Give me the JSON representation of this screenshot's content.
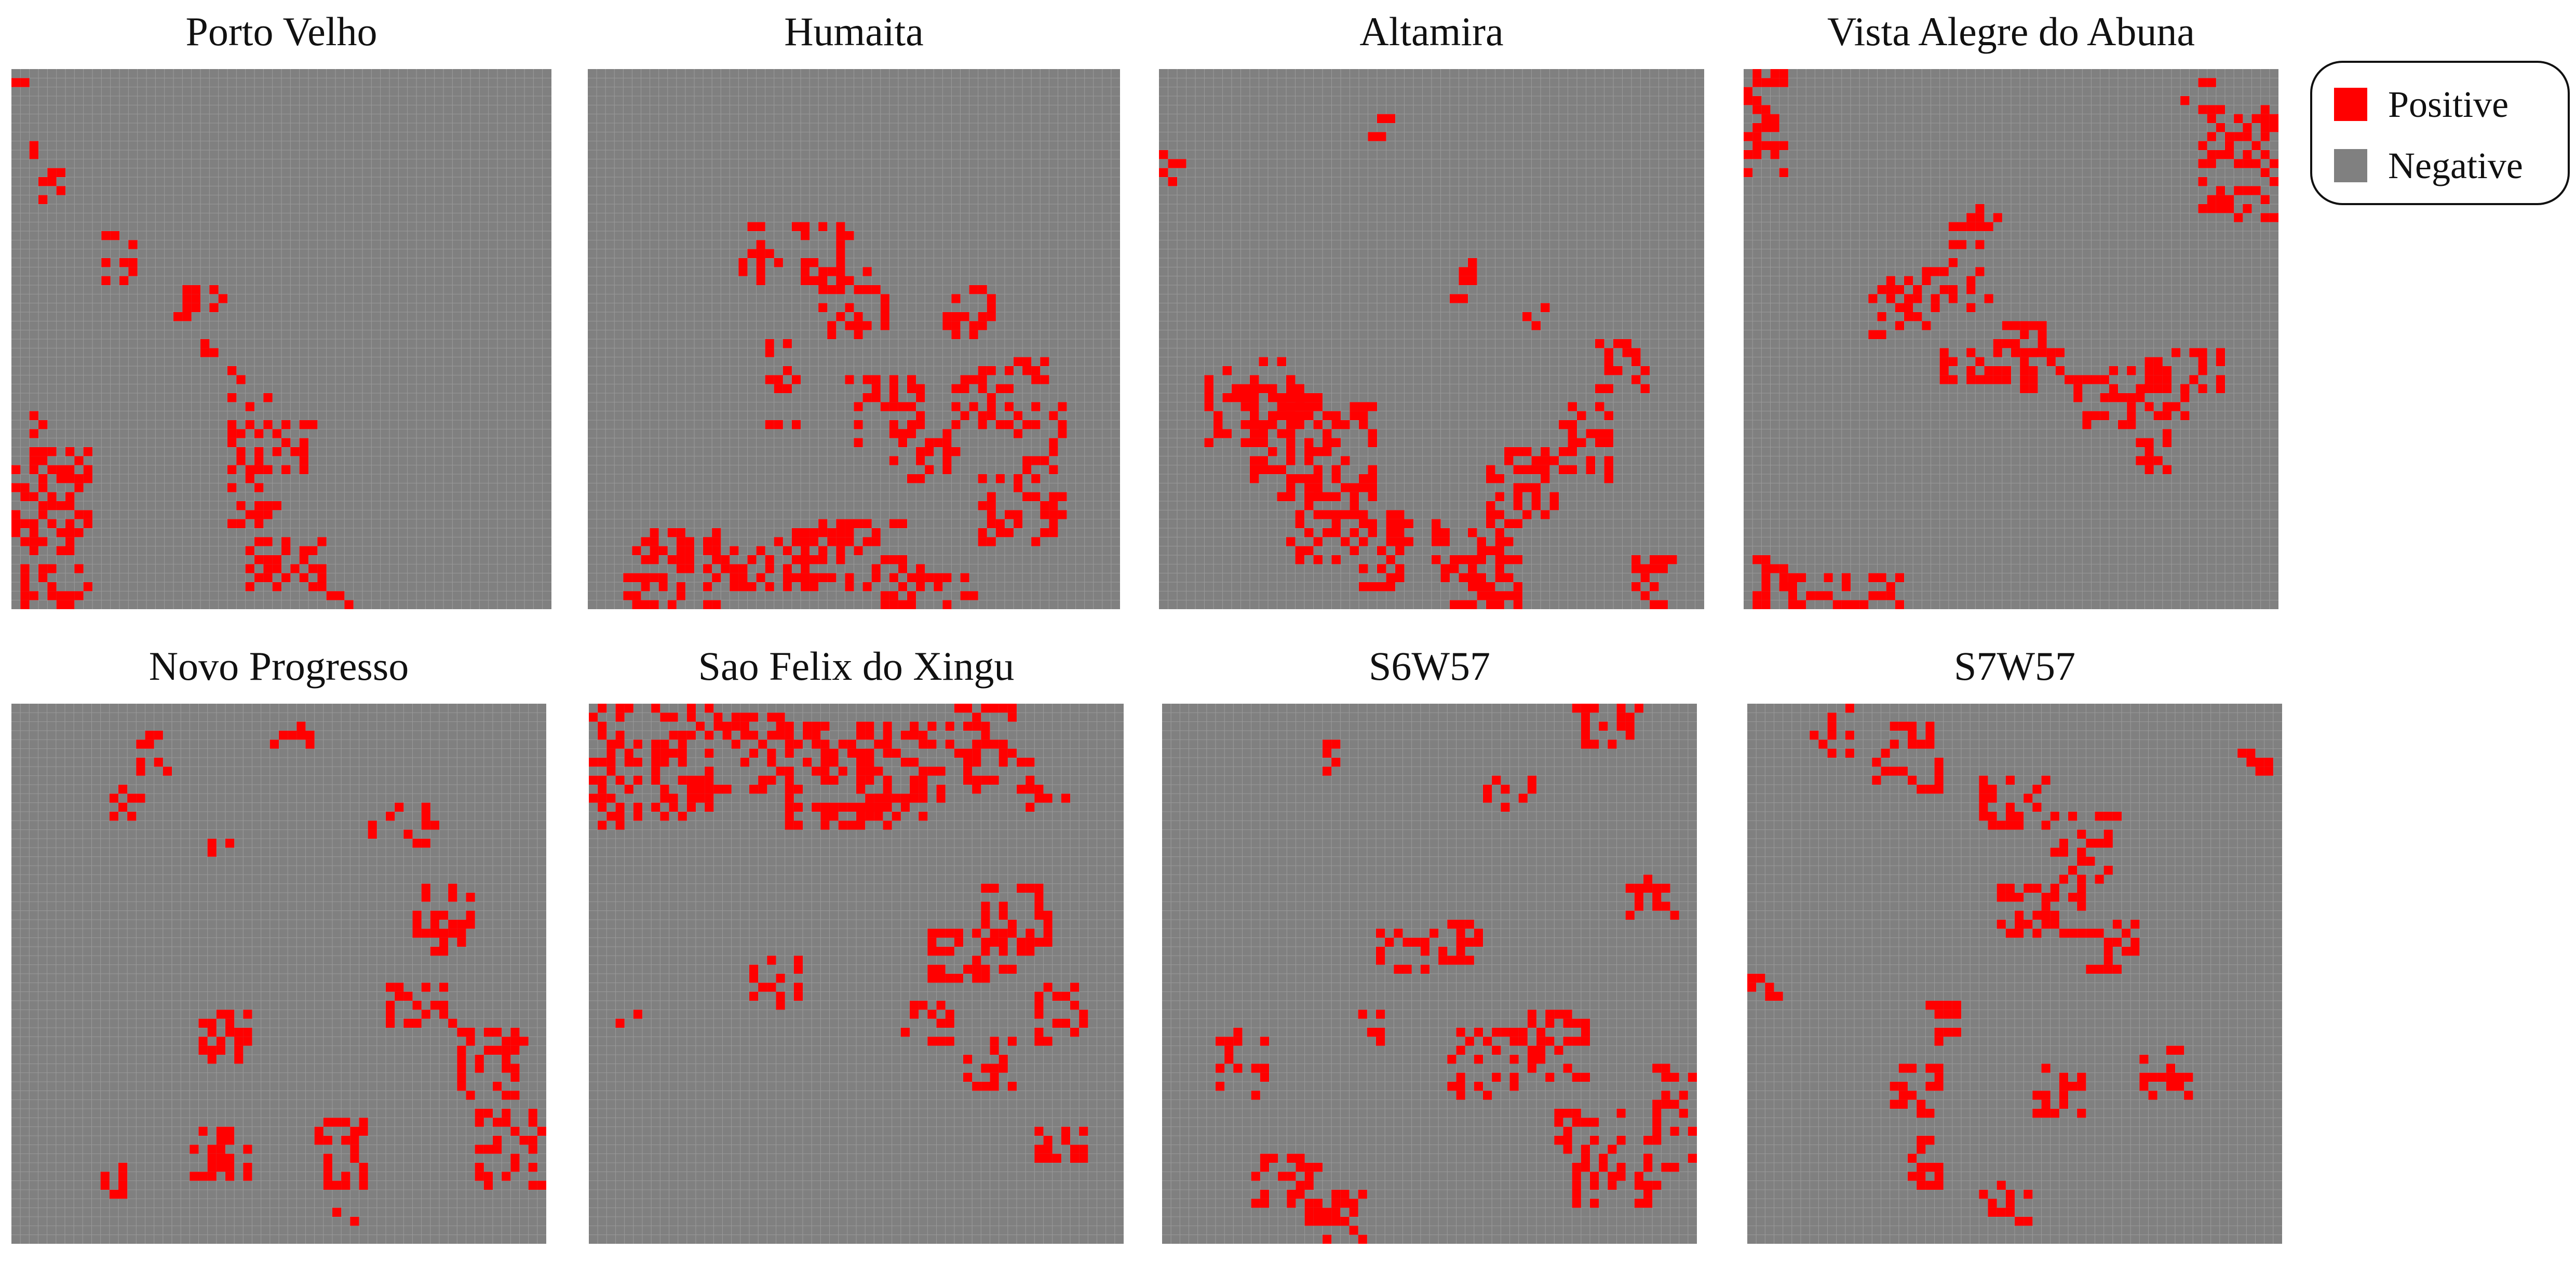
{
  "chart_data": {
    "type": "heatmap",
    "grid_size": 60,
    "legend": {
      "placement": "top-right",
      "items": [
        {
          "label": "Positive",
          "color": "#ff0000"
        },
        {
          "label": "Negative",
          "color": "#808080"
        }
      ]
    },
    "panels": [
      {
        "title": "Porto Velho",
        "positive_regions": [
          [
            1,
            3,
            8,
            10
          ],
          [
            3,
            6,
            11,
            15
          ],
          [
            2,
            4,
            14,
            16
          ],
          [
            10,
            14,
            18,
            24
          ],
          [
            18,
            20,
            27,
            30
          ],
          [
            18,
            24,
            24,
            27
          ],
          [
            21,
            23,
            29,
            33
          ],
          [
            24,
            27,
            33,
            38
          ],
          [
            24,
            34,
            39,
            45
          ],
          [
            24,
            30,
            45,
            53
          ],
          [
            26,
            35,
            52,
            58
          ],
          [
            0,
            9,
            42,
            54
          ],
          [
            1,
            10,
            55,
            60
          ],
          [
            2,
            5,
            38,
            43
          ],
          [
            0,
            2,
            0,
            2
          ],
          [
            28,
            30,
            35,
            37
          ],
          [
            35,
            38,
            58,
            60
          ]
        ]
      },
      {
        "title": "Humaita",
        "positive_regions": [
          [
            17,
            30,
            17,
            24
          ],
          [
            26,
            34,
            22,
            30
          ],
          [
            20,
            24,
            30,
            40
          ],
          [
            29,
            38,
            34,
            42
          ],
          [
            34,
            42,
            39,
            46
          ],
          [
            41,
            48,
            33,
            40
          ],
          [
            47,
            54,
            37,
            45
          ],
          [
            44,
            54,
            45,
            53
          ],
          [
            4,
            15,
            51,
            60
          ],
          [
            13,
            27,
            52,
            58
          ],
          [
            23,
            37,
            50,
            58
          ],
          [
            33,
            44,
            55,
            60
          ],
          [
            40,
            46,
            24,
            30
          ],
          [
            48,
            52,
            32,
            36
          ]
        ]
      },
      {
        "title": "Altamira",
        "positive_regions": [
          [
            31,
            34,
            24,
            26
          ],
          [
            33,
            35,
            18,
            24
          ],
          [
            40,
            43,
            26,
            29
          ],
          [
            5,
            16,
            32,
            42
          ],
          [
            10,
            24,
            36,
            48
          ],
          [
            14,
            22,
            46,
            55
          ],
          [
            20,
            28,
            48,
            58
          ],
          [
            30,
            40,
            50,
            60
          ],
          [
            36,
            44,
            42,
            50
          ],
          [
            44,
            50,
            37,
            46
          ],
          [
            48,
            54,
            30,
            36
          ],
          [
            52,
            58,
            54,
            60
          ],
          [
            0,
            3,
            9,
            13
          ],
          [
            22,
            26,
            5,
            9
          ]
        ]
      },
      {
        "title": "Vista Alegre do Abuna",
        "positive_regions": [
          [
            23,
            29,
            15,
            20
          ],
          [
            20,
            28,
            21,
            27
          ],
          [
            14,
            22,
            23,
            30
          ],
          [
            22,
            36,
            31,
            35
          ],
          [
            36,
            50,
            33,
            40
          ],
          [
            44,
            54,
            31,
            36
          ],
          [
            0,
            5,
            0,
            12
          ],
          [
            1,
            6,
            53,
            60
          ],
          [
            4,
            18,
            56,
            60
          ],
          [
            51,
            60,
            4,
            17
          ],
          [
            28,
            34,
            28,
            36
          ],
          [
            44,
            48,
            40,
            45
          ],
          [
            49,
            53,
            1,
            4
          ]
        ]
      },
      {
        "title": "Novo Progresso",
        "positive_regions": [
          [
            14,
            18,
            3,
            8
          ],
          [
            22,
            25,
            13,
            17
          ],
          [
            29,
            34,
            2,
            5
          ],
          [
            40,
            48,
            11,
            16
          ],
          [
            45,
            52,
            20,
            28
          ],
          [
            42,
            50,
            31,
            36
          ],
          [
            50,
            58,
            36,
            44
          ],
          [
            52,
            60,
            45,
            54
          ],
          [
            20,
            27,
            47,
            53
          ],
          [
            36,
            40,
            56,
            58
          ],
          [
            11,
            15,
            9,
            13
          ],
          [
            21,
            27,
            34,
            40
          ],
          [
            34,
            40,
            46,
            54
          ],
          [
            10,
            13,
            50,
            55
          ]
        ]
      },
      {
        "title": "Sao Felix do Xingu",
        "positive_regions": [
          [
            0,
            6,
            0,
            14
          ],
          [
            7,
            14,
            0,
            13
          ],
          [
            14,
            23,
            1,
            10
          ],
          [
            22,
            34,
            2,
            14
          ],
          [
            30,
            40,
            2,
            13
          ],
          [
            40,
            48,
            0,
            10
          ],
          [
            44,
            52,
            20,
            28
          ],
          [
            38,
            48,
            25,
            31
          ],
          [
            18,
            24,
            28,
            34
          ],
          [
            35,
            41,
            33,
            38
          ],
          [
            50,
            56,
            31,
            38
          ],
          [
            42,
            48,
            37,
            43
          ],
          [
            3,
            6,
            34,
            37
          ],
          [
            50,
            56,
            47,
            51
          ],
          [
            48,
            54,
            6,
            12
          ]
        ]
      },
      {
        "title": "S6W57",
        "positive_regions": [
          [
            6,
            12,
            36,
            44
          ],
          [
            22,
            25,
            34,
            38
          ],
          [
            24,
            30,
            25,
            30
          ],
          [
            30,
            36,
            24,
            29
          ],
          [
            32,
            40,
            36,
            44
          ],
          [
            40,
            48,
            34,
            42
          ],
          [
            44,
            52,
            45,
            50
          ],
          [
            46,
            56,
            50,
            56
          ],
          [
            54,
            60,
            40,
            52
          ],
          [
            16,
            24,
            54,
            60
          ],
          [
            10,
            18,
            50,
            56
          ],
          [
            46,
            54,
            0,
            5
          ],
          [
            36,
            42,
            8,
            12
          ],
          [
            18,
            20,
            4,
            8
          ],
          [
            52,
            58,
            18,
            24
          ]
        ]
      },
      {
        "title": "S7W57",
        "positive_regions": [
          [
            7,
            12,
            0,
            6
          ],
          [
            14,
            22,
            2,
            10
          ],
          [
            26,
            34,
            8,
            14
          ],
          [
            34,
            42,
            12,
            20
          ],
          [
            28,
            38,
            20,
            26
          ],
          [
            38,
            44,
            24,
            30
          ],
          [
            20,
            24,
            33,
            38
          ],
          [
            55,
            60,
            5,
            8
          ],
          [
            0,
            4,
            30,
            34
          ],
          [
            16,
            22,
            40,
            46
          ],
          [
            32,
            38,
            40,
            46
          ],
          [
            44,
            50,
            38,
            44
          ],
          [
            18,
            22,
            48,
            54
          ],
          [
            26,
            32,
            53,
            58
          ]
        ]
      }
    ]
  }
}
